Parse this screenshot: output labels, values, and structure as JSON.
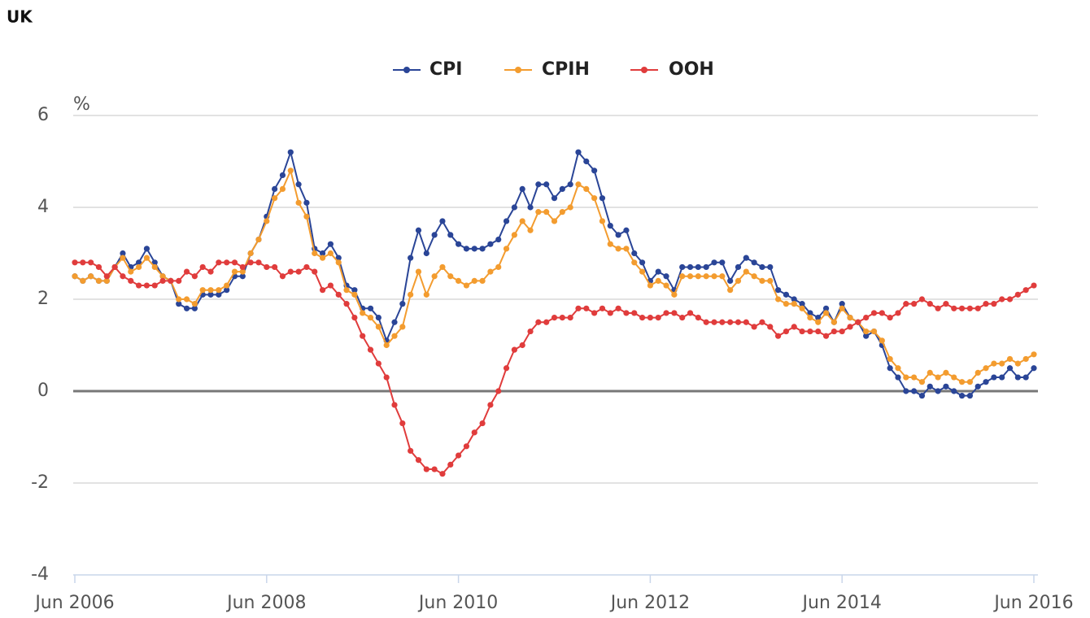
{
  "chart_data": {
    "type": "line",
    "title": "UK",
    "ylabel": "%",
    "x": [
      "2006-06",
      "2006-07",
      "2006-08",
      "2006-09",
      "2006-10",
      "2006-11",
      "2006-12",
      "2007-01",
      "2007-02",
      "2007-03",
      "2007-04",
      "2007-05",
      "2007-06",
      "2007-07",
      "2007-08",
      "2007-09",
      "2007-10",
      "2007-11",
      "2007-12",
      "2008-01",
      "2008-02",
      "2008-03",
      "2008-04",
      "2008-05",
      "2008-06",
      "2008-07",
      "2008-08",
      "2008-09",
      "2008-10",
      "2008-11",
      "2008-12",
      "2009-01",
      "2009-02",
      "2009-03",
      "2009-04",
      "2009-05",
      "2009-06",
      "2009-07",
      "2009-08",
      "2009-09",
      "2009-10",
      "2009-11",
      "2009-12",
      "2010-01",
      "2010-02",
      "2010-03",
      "2010-04",
      "2010-05",
      "2010-06",
      "2010-07",
      "2010-08",
      "2010-09",
      "2010-10",
      "2010-11",
      "2010-12",
      "2011-01",
      "2011-02",
      "2011-03",
      "2011-04",
      "2011-05",
      "2011-06",
      "2011-07",
      "2011-08",
      "2011-09",
      "2011-10",
      "2011-11",
      "2011-12",
      "2012-01",
      "2012-02",
      "2012-03",
      "2012-04",
      "2012-05",
      "2012-06",
      "2012-07",
      "2012-08",
      "2012-09",
      "2012-10",
      "2012-11",
      "2012-12",
      "2013-01",
      "2013-02",
      "2013-03",
      "2013-04",
      "2013-05",
      "2013-06",
      "2013-07",
      "2013-08",
      "2013-09",
      "2013-10",
      "2013-11",
      "2013-12",
      "2014-01",
      "2014-02",
      "2014-03",
      "2014-04",
      "2014-05",
      "2014-06",
      "2014-07",
      "2014-08",
      "2014-09",
      "2014-10",
      "2014-11",
      "2014-12",
      "2015-01",
      "2015-02",
      "2015-03",
      "2015-04",
      "2015-05",
      "2015-06",
      "2015-07",
      "2015-08",
      "2015-09",
      "2015-10",
      "2015-11",
      "2015-12",
      "2016-01",
      "2016-02",
      "2016-03",
      "2016-04",
      "2016-05",
      "2016-06"
    ],
    "series": [
      {
        "name": "CPI",
        "color": "#2a4597",
        "values": [
          2.5,
          2.4,
          2.5,
          2.4,
          2.4,
          2.7,
          3.0,
          2.7,
          2.8,
          3.1,
          2.8,
          2.5,
          2.4,
          1.9,
          1.8,
          1.8,
          2.1,
          2.1,
          2.1,
          2.2,
          2.5,
          2.5,
          3.0,
          3.3,
          3.8,
          4.4,
          4.7,
          5.2,
          4.5,
          4.1,
          3.1,
          3.0,
          3.2,
          2.9,
          2.3,
          2.2,
          1.8,
          1.8,
          1.6,
          1.1,
          1.5,
          1.9,
          2.9,
          3.5,
          3.0,
          3.4,
          3.7,
          3.4,
          3.2,
          3.1,
          3.1,
          3.1,
          3.2,
          3.3,
          3.7,
          4.0,
          4.4,
          4.0,
          4.5,
          4.5,
          4.2,
          4.4,
          4.5,
          5.2,
          5.0,
          4.8,
          4.2,
          3.6,
          3.4,
          3.5,
          3.0,
          2.8,
          2.4,
          2.6,
          2.5,
          2.2,
          2.7,
          2.7,
          2.7,
          2.7,
          2.8,
          2.8,
          2.4,
          2.7,
          2.9,
          2.8,
          2.7,
          2.7,
          2.2,
          2.1,
          2.0,
          1.9,
          1.7,
          1.6,
          1.8,
          1.5,
          1.9,
          1.6,
          1.5,
          1.2,
          1.3,
          1.0,
          0.5,
          0.3,
          0.0,
          0.0,
          -0.1,
          0.1,
          0.0,
          0.1,
          0.0,
          -0.1,
          -0.1,
          0.1,
          0.2,
          0.3,
          0.3,
          0.5,
          0.3,
          0.3,
          0.5
        ]
      },
      {
        "name": "CPIH",
        "color": "#f39c2f",
        "values": [
          2.5,
          2.4,
          2.5,
          2.4,
          2.4,
          2.7,
          2.9,
          2.6,
          2.7,
          2.9,
          2.7,
          2.5,
          2.4,
          2.0,
          2.0,
          1.9,
          2.2,
          2.2,
          2.2,
          2.3,
          2.6,
          2.6,
          3.0,
          3.3,
          3.7,
          4.2,
          4.4,
          4.8,
          4.1,
          3.8,
          3.0,
          2.9,
          3.0,
          2.8,
          2.2,
          2.1,
          1.7,
          1.6,
          1.4,
          1.0,
          1.2,
          1.4,
          2.1,
          2.6,
          2.1,
          2.5,
          2.7,
          2.5,
          2.4,
          2.3,
          2.4,
          2.4,
          2.6,
          2.7,
          3.1,
          3.4,
          3.7,
          3.5,
          3.9,
          3.9,
          3.7,
          3.9,
          4.0,
          4.5,
          4.4,
          4.2,
          3.7,
          3.2,
          3.1,
          3.1,
          2.8,
          2.6,
          2.3,
          2.4,
          2.3,
          2.1,
          2.5,
          2.5,
          2.5,
          2.5,
          2.5,
          2.5,
          2.2,
          2.4,
          2.6,
          2.5,
          2.4,
          2.4,
          2.0,
          1.9,
          1.9,
          1.8,
          1.6,
          1.5,
          1.7,
          1.5,
          1.8,
          1.6,
          1.5,
          1.3,
          1.3,
          1.1,
          0.7,
          0.5,
          0.3,
          0.3,
          0.2,
          0.4,
          0.3,
          0.4,
          0.3,
          0.2,
          0.2,
          0.4,
          0.5,
          0.6,
          0.6,
          0.7,
          0.6,
          0.7,
          0.8
        ]
      },
      {
        "name": "OOH",
        "color": "#e03c3c",
        "values": [
          2.8,
          2.8,
          2.8,
          2.7,
          2.5,
          2.7,
          2.5,
          2.4,
          2.3,
          2.3,
          2.3,
          2.4,
          2.4,
          2.4,
          2.6,
          2.5,
          2.7,
          2.6,
          2.8,
          2.8,
          2.8,
          2.7,
          2.8,
          2.8,
          2.7,
          2.7,
          2.5,
          2.6,
          2.6,
          2.7,
          2.6,
          2.2,
          2.3,
          2.1,
          1.9,
          1.6,
          1.2,
          0.9,
          0.6,
          0.3,
          -0.3,
          -0.7,
          -1.3,
          -1.5,
          -1.7,
          -1.7,
          -1.8,
          -1.6,
          -1.4,
          -1.2,
          -0.9,
          -0.7,
          -0.3,
          0.0,
          0.5,
          0.9,
          1.0,
          1.3,
          1.5,
          1.5,
          1.6,
          1.6,
          1.6,
          1.8,
          1.8,
          1.7,
          1.8,
          1.7,
          1.8,
          1.7,
          1.7,
          1.6,
          1.6,
          1.6,
          1.7,
          1.7,
          1.6,
          1.7,
          1.6,
          1.5,
          1.5,
          1.5,
          1.5,
          1.5,
          1.5,
          1.4,
          1.5,
          1.4,
          1.2,
          1.3,
          1.4,
          1.3,
          1.3,
          1.3,
          1.2,
          1.3,
          1.3,
          1.4,
          1.5,
          1.6,
          1.7,
          1.7,
          1.6,
          1.7,
          1.9,
          1.9,
          2.0,
          1.9,
          1.8,
          1.9,
          1.8,
          1.8,
          1.8,
          1.8,
          1.9,
          1.9,
          2.0,
          2.0,
          2.1,
          2.2,
          2.3
        ]
      }
    ],
    "xlim": [
      "2006-06",
      "2016-06"
    ],
    "xticks": [
      {
        "value": "2006-06",
        "label": "Jun 2006"
      },
      {
        "value": "2008-06",
        "label": "Jun 2008"
      },
      {
        "value": "2010-06",
        "label": "Jun 2010"
      },
      {
        "value": "2012-06",
        "label": "Jun 2012"
      },
      {
        "value": "2014-06",
        "label": "Jun 2014"
      },
      {
        "value": "2016-06",
        "label": "Jun 2016"
      }
    ],
    "ylim": [
      -4,
      6
    ],
    "yticks": [
      -4,
      -2,
      0,
      2,
      4,
      6
    ],
    "grid": true,
    "legend": "top"
  }
}
